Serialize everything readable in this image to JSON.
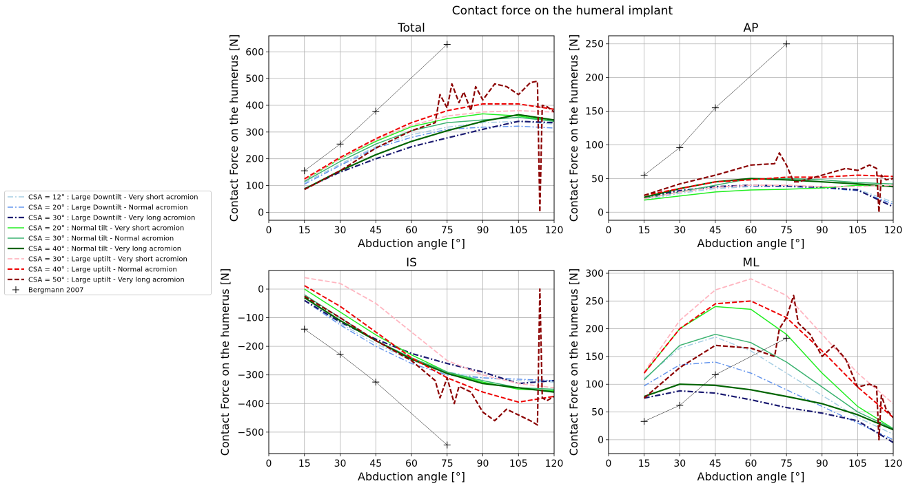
{
  "figure_title": "Contact force on the humeral implant",
  "legend": [
    {
      "label": "CSA = 12° : Large Downtilt      -  Very short acromion",
      "color": "#a6cee3",
      "dash": "dashdot",
      "width": 1.5
    },
    {
      "label": "CSA = 20° : Large Downtilt      -  Normal acromion",
      "color": "#6495ed",
      "dash": "dashdot",
      "width": 1.5
    },
    {
      "label": "CSA = 30° : Large Downtilt      -  Very long acromion",
      "color": "#191970",
      "dash": "dashdot",
      "width": 2.2
    },
    {
      "label": "CSA = 20° : Normal tilt         -  Very short acromion",
      "color": "#22ee22",
      "dash": "solid",
      "width": 1.5
    },
    {
      "label": "CSA = 30° : Normal tilt         -  Normal acromion",
      "color": "#3cb371",
      "dash": "solid",
      "width": 1.5
    },
    {
      "label": "CSA = 40° : Normal tilt         -  Very long acromion",
      "color": "#006400",
      "dash": "solid",
      "width": 2.2
    },
    {
      "label": "CSA = 30° : Large uptilt       -  Very short acromion",
      "color": "#ffb6c1",
      "dash": "dashed",
      "width": 1.8
    },
    {
      "label": "CSA = 40° : Large uptilt       -  Normal acromion",
      "color": "#ee0000",
      "dash": "dashed",
      "width": 2
    },
    {
      "label": "CSA = 50° : Large uptilt       -  Very long acromion",
      "color": "#8b0000",
      "dash": "dashed",
      "width": 2.2
    },
    {
      "label": "Bergmann 2007",
      "color": "#000000",
      "dash": "marker",
      "width": 0.5
    }
  ],
  "chart_data": [
    {
      "type": "line",
      "title": "Total",
      "xlabel": "Abduction angle [°]",
      "ylabel": "Contact Force on the humerus [N]",
      "xlim": [
        0,
        120
      ],
      "ylim": [
        -30,
        660
      ],
      "xticks": [
        0,
        15,
        30,
        45,
        60,
        75,
        90,
        105,
        120
      ],
      "yticks": [
        0,
        100,
        200,
        300,
        400,
        500,
        600
      ],
      "grid": true,
      "series": [
        {
          "x": [
            15,
            30,
            45,
            60,
            75,
            90,
            105,
            120
          ],
          "y": [
            110,
            180,
            245,
            290,
            318,
            335,
            340,
            330
          ]
        },
        {
          "x": [
            15,
            30,
            45,
            60,
            75,
            90,
            105,
            120
          ],
          "y": [
            105,
            175,
            240,
            280,
            310,
            318,
            322,
            315
          ]
        },
        {
          "x": [
            15,
            30,
            45,
            60,
            75,
            90,
            105,
            120
          ],
          "y": [
            88,
            150,
            200,
            245,
            278,
            310,
            340,
            335
          ]
        },
        {
          "x": [
            15,
            30,
            45,
            60,
            75,
            90,
            105,
            120
          ],
          "y": [
            120,
            200,
            265,
            320,
            350,
            368,
            360,
            340
          ]
        },
        {
          "x": [
            15,
            30,
            45,
            60,
            75,
            90,
            105,
            120
          ],
          "y": [
            115,
            190,
            255,
            305,
            335,
            345,
            355,
            340
          ]
        },
        {
          "x": [
            15,
            30,
            45,
            60,
            75,
            90,
            105,
            120
          ],
          "y": [
            87,
            155,
            215,
            265,
            305,
            340,
            365,
            345
          ]
        },
        {
          "x": [
            15,
            30,
            45,
            60,
            75,
            90,
            105,
            120
          ],
          "y": [
            120,
            200,
            270,
            325,
            360,
            375,
            380,
            375
          ]
        },
        {
          "x": [
            15,
            30,
            45,
            60,
            75,
            90,
            105,
            120
          ],
          "y": [
            125,
            205,
            275,
            335,
            380,
            405,
            405,
            385
          ]
        },
        {
          "x": [
            15,
            30,
            45,
            60,
            70,
            72,
            75,
            77,
            80,
            82,
            85,
            87,
            90,
            95,
            100,
            105,
            110,
            113,
            114,
            115,
            117,
            120
          ],
          "y": [
            85,
            155,
            240,
            305,
            335,
            440,
            390,
            480,
            410,
            450,
            380,
            470,
            420,
            480,
            470,
            440,
            485,
            490,
            0,
            400,
            395,
            375
          ]
        },
        {
          "x": [
            15,
            30,
            45,
            75
          ],
          "y": [
            155,
            255,
            378,
            628
          ]
        }
      ]
    },
    {
      "type": "line",
      "title": "AP",
      "xlabel": "Abduction angle [°]",
      "ylabel": "Contact Force on the humerus [N]",
      "xlim": [
        0,
        120
      ],
      "ylim": [
        -12,
        262
      ],
      "xticks": [
        0,
        15,
        30,
        45,
        60,
        75,
        90,
        105,
        120
      ],
      "yticks": [
        0,
        50,
        100,
        150,
        200,
        250
      ],
      "grid": true,
      "series": [
        {
          "x": [
            15,
            30,
            45,
            60,
            75,
            90,
            105,
            120
          ],
          "y": [
            18,
            28,
            35,
            38,
            38,
            36,
            34,
            15
          ]
        },
        {
          "x": [
            15,
            30,
            45,
            60,
            75,
            90,
            105,
            120
          ],
          "y": [
            20,
            30,
            37,
            39,
            38,
            36,
            32,
            12
          ]
        },
        {
          "x": [
            15,
            30,
            45,
            60,
            75,
            90,
            105,
            120
          ],
          "y": [
            22,
            32,
            38,
            40,
            39,
            37,
            33,
            8
          ]
        },
        {
          "x": [
            15,
            30,
            45,
            60,
            75,
            90,
            105,
            120
          ],
          "y": [
            18,
            24,
            30,
            33,
            34,
            36,
            40,
            38
          ]
        },
        {
          "x": [
            15,
            30,
            45,
            60,
            75,
            90,
            105,
            120
          ],
          "y": [
            20,
            30,
            40,
            50,
            50,
            48,
            44,
            42
          ]
        },
        {
          "x": [
            15,
            30,
            45,
            60,
            75,
            90,
            105,
            120
          ],
          "y": [
            22,
            35,
            45,
            50,
            48,
            45,
            42,
            38
          ]
        },
        {
          "x": [
            15,
            30,
            45,
            60,
            75,
            90,
            105,
            120
          ],
          "y": [
            20,
            30,
            37,
            40,
            40,
            38,
            38,
            40
          ]
        },
        {
          "x": [
            15,
            30,
            45,
            60,
            75,
            90,
            105,
            120
          ],
          "y": [
            25,
            35,
            45,
            48,
            52,
            52,
            55,
            53
          ]
        },
        {
          "x": [
            15,
            30,
            45,
            60,
            70,
            72,
            75,
            78,
            80,
            85,
            90,
            95,
            100,
            105,
            110,
            113,
            114,
            115,
            117,
            120
          ],
          "y": [
            25,
            42,
            55,
            70,
            72,
            88,
            70,
            45,
            45,
            50,
            55,
            60,
            65,
            62,
            70,
            65,
            0,
            55,
            48,
            50
          ]
        },
        {
          "x": [
            15,
            30,
            45,
            75
          ],
          "y": [
            55,
            96,
            155,
            250
          ]
        }
      ]
    },
    {
      "type": "line",
      "title": "IS",
      "xlabel": "Abduction angle [°]",
      "ylabel": "Contact Force on the humerus [N]",
      "xlim": [
        0,
        120
      ],
      "ylim": [
        -575,
        65
      ],
      "xticks": [
        0,
        15,
        30,
        45,
        60,
        75,
        90,
        105,
        120
      ],
      "yticks": [
        0,
        -100,
        -200,
        -300,
        -400,
        -500
      ],
      "grid": true,
      "series": [
        {
          "x": [
            15,
            30,
            45,
            60,
            75,
            90,
            105,
            120
          ],
          "y": [
            -30,
            -120,
            -190,
            -250,
            -290,
            -310,
            -320,
            -325
          ]
        },
        {
          "x": [
            15,
            30,
            45,
            60,
            75,
            90,
            105,
            120
          ],
          "y": [
            -40,
            -125,
            -200,
            -260,
            -300,
            -310,
            -315,
            -320
          ]
        },
        {
          "x": [
            15,
            30,
            45,
            60,
            75,
            90,
            105,
            120
          ],
          "y": [
            -40,
            -115,
            -175,
            -225,
            -260,
            -290,
            -330,
            -320
          ]
        },
        {
          "x": [
            15,
            30,
            45,
            60,
            75,
            90,
            105,
            120
          ],
          "y": [
            0,
            -80,
            -160,
            -230,
            -290,
            -325,
            -350,
            -355
          ]
        },
        {
          "x": [
            15,
            30,
            45,
            60,
            75,
            90,
            105,
            120
          ],
          "y": [
            -20,
            -100,
            -180,
            -240,
            -290,
            -320,
            -345,
            -350
          ]
        },
        {
          "x": [
            15,
            30,
            45,
            60,
            75,
            90,
            105,
            120
          ],
          "y": [
            -30,
            -110,
            -180,
            -245,
            -295,
            -330,
            -345,
            -360
          ]
        },
        {
          "x": [
            15,
            30,
            45,
            60,
            75,
            90,
            105,
            120
          ],
          "y": [
            40,
            20,
            -50,
            -150,
            -250,
            -300,
            -330,
            -345
          ]
        },
        {
          "x": [
            15,
            30,
            45,
            60,
            75,
            90,
            105,
            120
          ],
          "y": [
            12,
            -60,
            -150,
            -240,
            -310,
            -360,
            -395,
            -375
          ]
        },
        {
          "x": [
            15,
            30,
            45,
            60,
            70,
            72,
            75,
            78,
            80,
            85,
            90,
            95,
            100,
            105,
            110,
            113,
            114,
            115,
            117,
            120
          ],
          "y": [
            -25,
            -100,
            -180,
            -250,
            -320,
            -380,
            -310,
            -400,
            -340,
            -360,
            -430,
            -460,
            -420,
            -440,
            -460,
            -475,
            0,
            -380,
            -390,
            -375
          ]
        },
        {
          "x": [
            15,
            30,
            45,
            75
          ],
          "y": [
            -140,
            -228,
            -325,
            -545
          ]
        }
      ]
    },
    {
      "type": "line",
      "title": "ML",
      "xlabel": "Abduction angle [°]",
      "ylabel": "Contact Force on the humerus [N]",
      "xlim": [
        0,
        120
      ],
      "ylim": [
        -25,
        305
      ],
      "xticks": [
        0,
        15,
        30,
        45,
        60,
        75,
        90,
        105,
        120
      ],
      "yticks": [
        0,
        50,
        100,
        150,
        200,
        250,
        300
      ],
      "grid": true,
      "series": [
        {
          "x": [
            15,
            30,
            45,
            60,
            75,
            90,
            105,
            120
          ],
          "y": [
            110,
            165,
            185,
            160,
            120,
            80,
            40,
            10
          ]
        },
        {
          "x": [
            15,
            30,
            45,
            60,
            75,
            90,
            105,
            120
          ],
          "y": [
            97,
            135,
            140,
            120,
            90,
            60,
            30,
            0
          ]
        },
        {
          "x": [
            15,
            30,
            45,
            60,
            75,
            90,
            105,
            120
          ],
          "y": [
            75,
            88,
            84,
            72,
            58,
            48,
            34,
            -5
          ]
        },
        {
          "x": [
            15,
            30,
            45,
            60,
            75,
            90,
            105,
            120
          ],
          "y": [
            120,
            200,
            240,
            235,
            190,
            120,
            60,
            20
          ]
        },
        {
          "x": [
            15,
            30,
            45,
            60,
            75,
            90,
            105,
            120
          ],
          "y": [
            108,
            170,
            190,
            175,
            140,
            95,
            50,
            20
          ]
        },
        {
          "x": [
            15,
            30,
            45,
            60,
            75,
            90,
            105,
            120
          ],
          "y": [
            78,
            100,
            98,
            90,
            78,
            65,
            45,
            18
          ]
        },
        {
          "x": [
            15,
            30,
            45,
            60,
            75,
            90,
            105,
            120
          ],
          "y": [
            122,
            215,
            270,
            290,
            260,
            190,
            120,
            65
          ]
        },
        {
          "x": [
            15,
            30,
            45,
            60,
            75,
            90,
            105,
            120
          ],
          "y": [
            120,
            200,
            245,
            250,
            220,
            160,
            95,
            40
          ]
        },
        {
          "x": [
            15,
            30,
            45,
            60,
            70,
            72,
            75,
            78,
            80,
            85,
            90,
            95,
            100,
            105,
            110,
            113,
            114,
            115,
            117,
            120
          ],
          "y": [
            75,
            130,
            170,
            165,
            150,
            200,
            220,
            260,
            210,
            190,
            150,
            170,
            145,
            95,
            100,
            95,
            0,
            80,
            55,
            40
          ]
        },
        {
          "x": [
            15,
            30,
            45,
            75
          ],
          "y": [
            33,
            62,
            117,
            183
          ]
        }
      ]
    }
  ]
}
